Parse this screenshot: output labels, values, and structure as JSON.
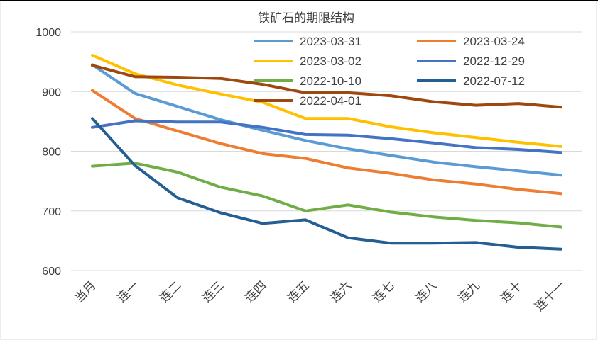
{
  "chart_data": {
    "type": "line",
    "title": "铁矿石的期限结构",
    "xlabel": "",
    "ylabel": "",
    "categories": [
      "当月",
      "连一",
      "连二",
      "连三",
      "连四",
      "连五",
      "连六",
      "连七",
      "连八",
      "连九",
      "连十",
      "连十一"
    ],
    "ylim": [
      600,
      1000
    ],
    "yticks": [
      600,
      700,
      800,
      900,
      1000
    ],
    "grid": true,
    "legend": "top-right",
    "series": [
      {
        "name": "2023-03-31",
        "color": "#5b9bd5",
        "values": [
          945,
          897,
          875,
          853,
          835,
          818,
          804,
          793,
          782,
          774,
          767,
          760
        ]
      },
      {
        "name": "2023-03-24",
        "color": "#ed7d31",
        "values": [
          902,
          855,
          834,
          813,
          796,
          788,
          772,
          763,
          752,
          745,
          736,
          729
        ]
      },
      {
        "name": "2023-03-02",
        "color": "#ffc000",
        "values": [
          961,
          930,
          911,
          896,
          882,
          855,
          855,
          841,
          831,
          823,
          815,
          808
        ]
      },
      {
        "name": "2022-12-29",
        "color": "#4472c4",
        "values": [
          840,
          851,
          849,
          849,
          840,
          828,
          827,
          821,
          814,
          806,
          803,
          798
        ]
      },
      {
        "name": "2022-10-10",
        "color": "#70ad47",
        "values": [
          775,
          780,
          765,
          740,
          725,
          700,
          710,
          698,
          690,
          684,
          680,
          673
        ]
      },
      {
        "name": "2022-07-12",
        "color": "#255e91",
        "values": [
          855,
          776,
          722,
          697,
          679,
          685,
          655,
          646,
          646,
          647,
          639,
          636
        ]
      },
      {
        "name": "2022-04-01",
        "color": "#9e480e",
        "values": [
          944,
          925,
          924,
          922,
          912,
          898,
          898,
          893,
          883,
          877,
          880,
          874
        ]
      }
    ]
  }
}
